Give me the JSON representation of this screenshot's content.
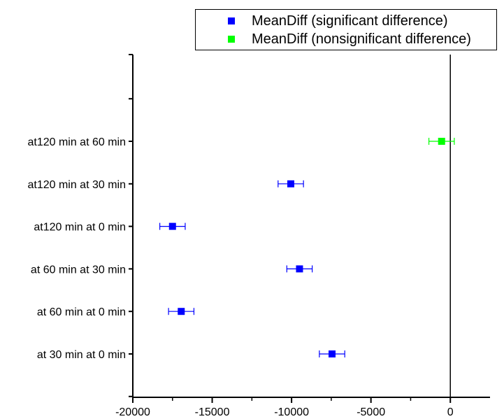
{
  "chart_data": {
    "type": "scatter",
    "title": "",
    "xlabel": "",
    "ylabel": "",
    "xlim": [
      -20000,
      2500
    ],
    "x_ticks": [
      -20000,
      -15000,
      -10000,
      -5000,
      0
    ],
    "x_tick_labels": [
      "-20000",
      "-15000",
      "-10000",
      "-5000",
      "0"
    ],
    "reference_line_x": 0,
    "grid": false,
    "legend_position": "top-right",
    "categories": [
      "at 30 min  at 0 min",
      "at 60 min  at 0 min",
      "at 60 min  at 30 min",
      "at120 min  at 0 min",
      "at120 min  at 30 min",
      "at120 min  at 60 min"
    ],
    "series": [
      {
        "name": "MeanDiff (significant difference)",
        "color": "#0000ff",
        "points": [
          {
            "category": "at 30 min  at 0 min",
            "mean": -7450,
            "lower": -8250,
            "upper": -6650
          },
          {
            "category": "at 60 min  at 0 min",
            "mean": -16950,
            "lower": -17750,
            "upper": -16150
          },
          {
            "category": "at 60 min  at 30 min",
            "mean": -9500,
            "lower": -10300,
            "upper": -8700
          },
          {
            "category": "at120 min  at 0 min",
            "mean": -17500,
            "lower": -18300,
            "upper": -16700
          },
          {
            "category": "at120 min  at 30 min",
            "mean": -10050,
            "lower": -10850,
            "upper": -9250
          }
        ]
      },
      {
        "name": "MeanDiff (nonsignificant difference)",
        "color": "#00ff00",
        "points": [
          {
            "category": "at120 min  at 60 min",
            "mean": -550,
            "lower": -1350,
            "upper": 250
          }
        ]
      }
    ]
  }
}
